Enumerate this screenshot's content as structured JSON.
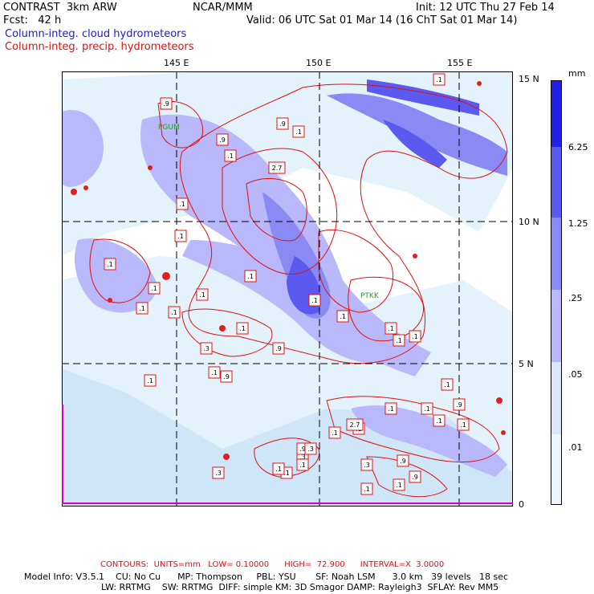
{
  "header": {
    "model": "CONTRAST  3km ARW",
    "fcst": "Fcst:   42 h",
    "center": "NCAR/MMM",
    "init": "Init: 12 UTC Thu 27 Feb 14",
    "valid": "Valid: 06 UTC Sat 01 Mar 14 (16 ChT Sat 01 Mar 14)"
  },
  "legend": {
    "cloud": "Column-integ. cloud hydrometeors",
    "precip": "Column-integ. precip. hydrometeors",
    "cloud_color": "#1a1ad0",
    "precip_color": "#e01010"
  },
  "map": {
    "lon_labels": [
      "145 E",
      "150 E",
      "155 E"
    ],
    "lat_labels": [
      "15 N",
      "10 N",
      "5 N",
      "0"
    ],
    "stations": [
      "PGUM",
      "PTKK"
    ],
    "contour_labels": [
      ".1",
      ".9",
      ".1",
      ".1",
      ".9",
      "2.7",
      ".1",
      ".1",
      ".1",
      ".1",
      ".1",
      ".1",
      ".1",
      ".1",
      ".9",
      ".1",
      ".1",
      ".3",
      ".9",
      ".1",
      ".9",
      ".1",
      ".1",
      ".1",
      ".3",
      ".3",
      ".1",
      ".1",
      ".9",
      ".3",
      "2.7",
      ".1",
      ".1",
      ".9",
      ".1",
      ".1",
      ".3",
      ".9",
      ".1",
      ".1",
      ".1",
      ".9",
      ".1",
      ".1",
      ".1",
      ".1",
      ".1"
    ]
  },
  "colorbar": {
    "unit": "mm",
    "labels": [
      "6.25",
      "1.25",
      ".25",
      ".05",
      ".01"
    ],
    "colors": [
      "#2020e8",
      "#5a5af0",
      "#8a8af4",
      "#b8b8fa",
      "#dde6fb",
      "#eef6fc",
      "#ffffff"
    ]
  },
  "footer": {
    "contours": "CONTOURS:  UNITS=mm   LOW= 0.10000      HIGH=  72.900      INTERVAL=X  3.0000",
    "model_line1": "Model Info: V3.5.1    CU: No Cu      MP: Thompson     PBL: YSU       SF: Noah LSM      3.0 km   39 levels   18 sec",
    "model_line2": "LW: RRTMG    SW: RRTMG  DIFF: simple KM: 3D Smagor DAMP: Rayleigh3  SFLAY: Rev MM5"
  }
}
